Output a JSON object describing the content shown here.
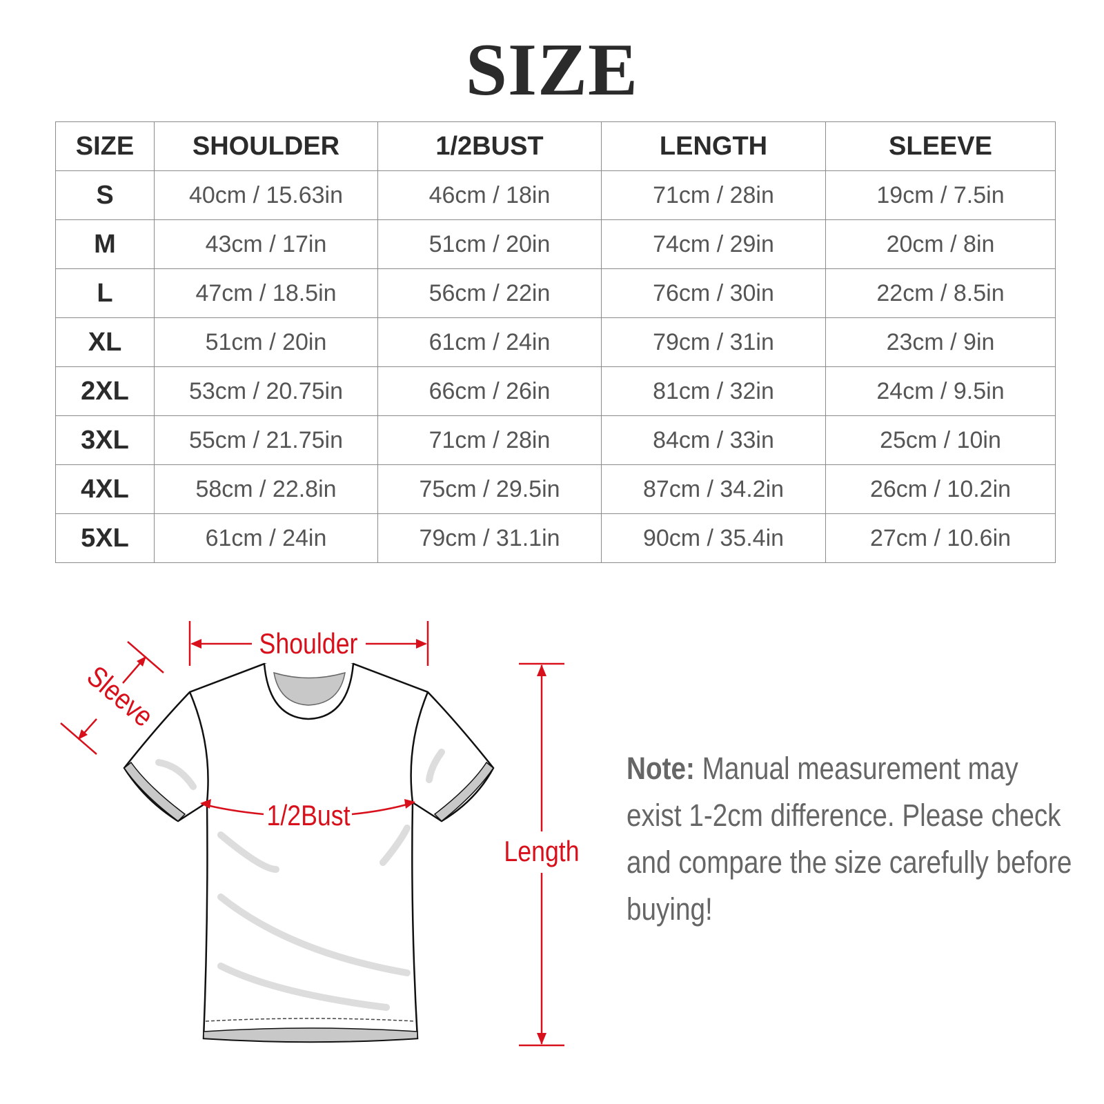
{
  "title": "SIZE",
  "table": {
    "headers": [
      "SIZE",
      "SHOULDER",
      "1/2BUST",
      "LENGTH",
      "SLEEVE"
    ],
    "rows": [
      [
        "S",
        "40cm / 15.63in",
        "46cm / 18in",
        "71cm / 28in",
        "19cm / 7.5in"
      ],
      [
        "M",
        "43cm / 17in",
        "51cm / 20in",
        "74cm / 29in",
        "20cm / 8in"
      ],
      [
        "L",
        "47cm / 18.5in",
        "56cm / 22in",
        "76cm / 30in",
        "22cm / 8.5in"
      ],
      [
        "XL",
        "51cm / 20in",
        "61cm / 24in",
        "79cm / 31in",
        "23cm / 9in"
      ],
      [
        "2XL",
        "53cm / 20.75in",
        "66cm / 26in",
        "81cm / 32in",
        "24cm / 9.5in"
      ],
      [
        "3XL",
        "55cm / 21.75in",
        "71cm / 28in",
        "84cm / 33in",
        "25cm / 10in"
      ],
      [
        "4XL",
        "58cm / 22.8in",
        "75cm / 29.5in",
        "87cm / 34.2in",
        "26cm / 10.2in"
      ],
      [
        "5XL",
        "61cm / 24in",
        "79cm / 31.1in",
        "90cm / 35.4in",
        "27cm / 10.6in"
      ]
    ]
  },
  "diagram": {
    "labels": {
      "shoulder": "Shoulder",
      "sleeve": "Sleeve",
      "bust": "1/2Bust",
      "length": "Length"
    },
    "accent_color": "#d7101b"
  },
  "note": {
    "label": "Note:",
    "text": " Manual measurement may exist 1-2cm difference. Please check and compare the size carefully before buying!"
  }
}
